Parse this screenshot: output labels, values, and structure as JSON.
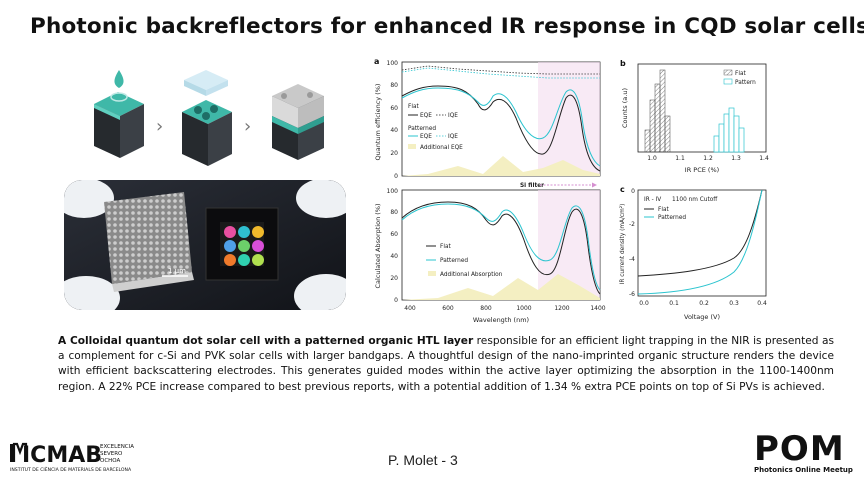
{
  "title": "Photonic backreflectors for enhanced IR response in CQD solar cells",
  "photo": {
    "scale_label": "1 μm"
  },
  "panels": {
    "a": {
      "label": "a",
      "ylabel": "Quantum efficiency (%)",
      "yticks": [
        "0",
        "20",
        "40",
        "60",
        "80",
        "100"
      ],
      "legend_group1_title": "Flat",
      "legend_eqe": "EQE",
      "legend_iqe": "IQE",
      "legend_group2_title": "Patterned",
      "legend_additional": "Additional EQE",
      "filter_label": "Si filter"
    },
    "a2": {
      "ylabel": "Calculated Absorption (%)",
      "yticks": [
        "0",
        "20",
        "40",
        "60",
        "80",
        "100"
      ],
      "xlabel": "Wavelength (nm)",
      "xticks": [
        "400",
        "600",
        "800",
        "1000",
        "1200",
        "1400"
      ],
      "legend_flat": "Flat",
      "legend_patterned": "Patterned",
      "legend_additional": "Additional Absorption"
    },
    "b": {
      "label": "b",
      "ylabel": "Counts (a.u)",
      "xlabel": "IR PCE (%)",
      "xticks": [
        "1.0",
        "1.1",
        "1.2",
        "1.3",
        "1.4"
      ],
      "legend_flat": "Flat",
      "legend_pattern": "Pattern"
    },
    "c": {
      "label": "c",
      "annotation_left": "IR - IV",
      "annotation_right": "1100 nm Cutoff",
      "ylabel": "IR current density (mA/cm²)",
      "yticks": [
        "-6",
        "-4",
        "-2",
        "0"
      ],
      "xlabel": "Voltage (V)",
      "xticks": [
        "0.0",
        "0.1",
        "0.2",
        "0.3",
        "0.4"
      ],
      "legend_flat": "Flat",
      "legend_patterned": "Patterned"
    }
  },
  "description": {
    "bold": "A Colloidal quantum dot solar cell with a patterned organic HTL layer",
    "rest": " responsible for an efficient light trapping in the NIR is presented as a complement for c-Si and PVK solar cells with larger bandgaps. A thoughtful design of the nano-imprinted organic structure renders the device with efficient backscattering electrodes. This generates guided modes within the active layer optimizing the absorption in the 1100-1400nm region. A 22% PCE increase compared to best previous reports, with a potential addition of 1.34 % extra PCE points on top of Si PVs is achieved."
  },
  "footer": {
    "left_logo_text": "ICMAB",
    "left_logo_sub1": "EXCELENCIA",
    "left_logo_sub2": "SEVERO",
    "left_logo_sub3": "OCHOA",
    "left_logo_caption": "INSTITUT DE CIÈNCIA DE MATERIALS DE BARCELONA",
    "speaker": "P. Molet  - 3",
    "right_logo_text": "POM",
    "right_logo_caption": "Photonics Online Meetup"
  },
  "colors": {
    "teal": "#2fb7b0",
    "cyan": "#2bc4cf",
    "dark": "#222222",
    "pink_fill": "#f3dcef",
    "yellow_fill": "#f4efc2",
    "hist_flat": "#d9d9d9"
  }
}
